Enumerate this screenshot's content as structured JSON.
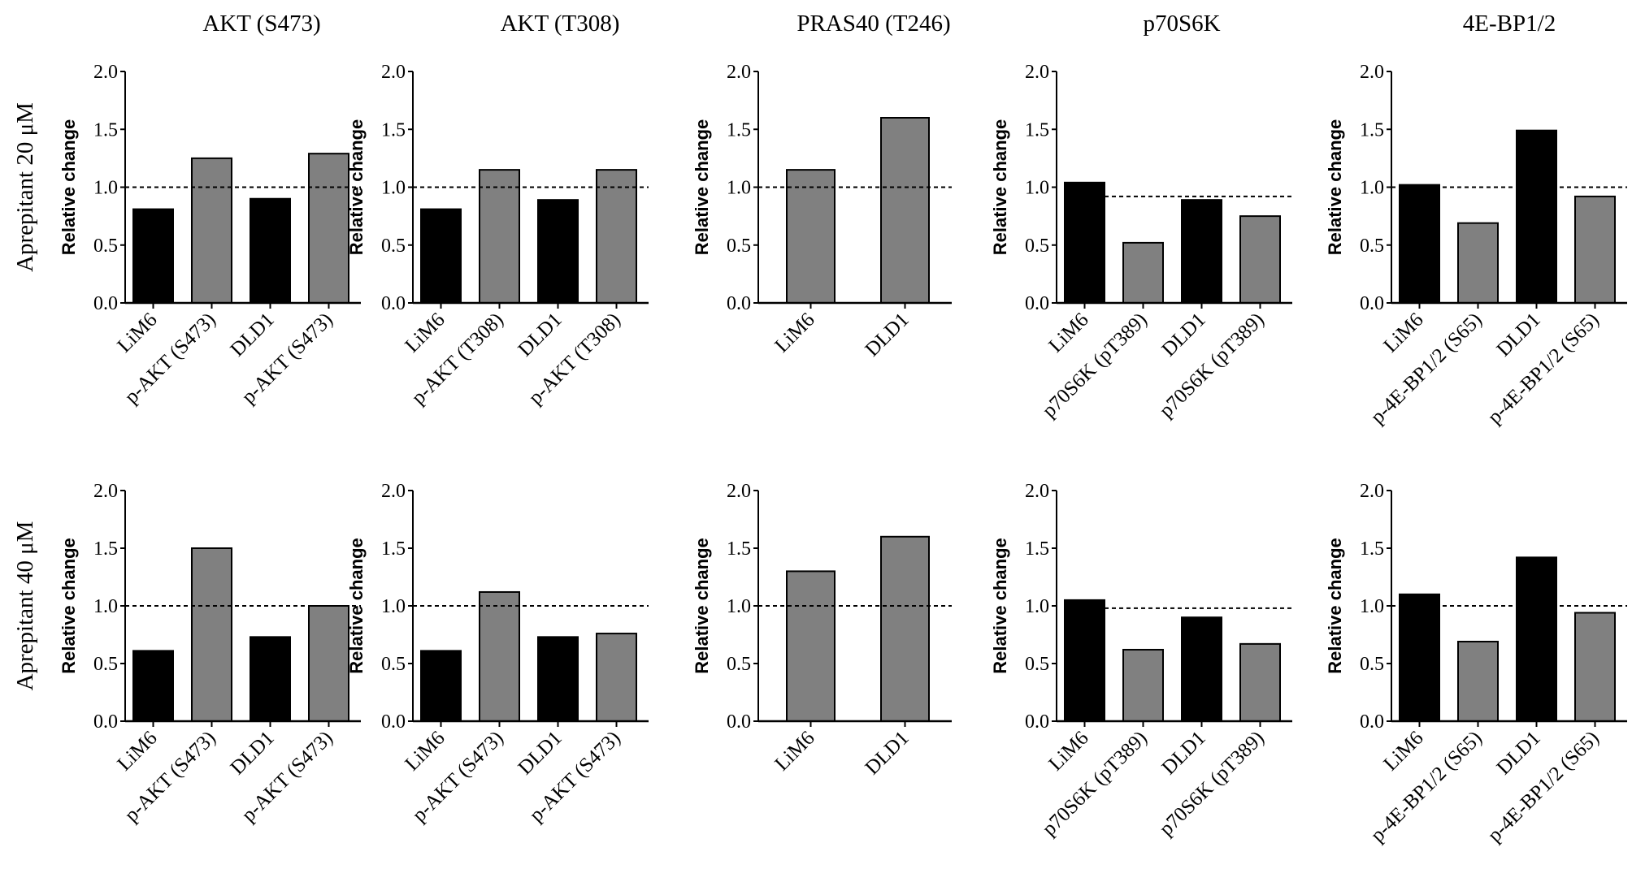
{
  "chart_data": {
    "type": "bar",
    "column_titles": [
      "AKT (S473)",
      "AKT (T308)",
      "PRAS40 (T246)",
      "p70S6K",
      "4E-BP1/2"
    ],
    "row_labels": [
      "Aprepitant 20 μM",
      "Aprepitant 40 μM"
    ],
    "ylabel": "Relative change",
    "ylim": [
      0,
      2.0
    ],
    "yticks": [
      "0.0",
      "0.5",
      "1.0",
      "1.5",
      "2.0"
    ],
    "colors": {
      "black": "#000000",
      "gray": "#808080"
    },
    "panels": [
      [
        {
          "categories": [
            "LiM6",
            "p-AKT (S473)",
            "DLD1",
            "p-AKT (S473)"
          ],
          "values": [
            0.81,
            1.25,
            0.9,
            1.29
          ],
          "colors": [
            "black",
            "gray",
            "black",
            "gray"
          ],
          "ref_line": 1.0,
          "ref_start": 0
        },
        {
          "categories": [
            "LiM6",
            "p-AKT (T308)",
            "DLD1",
            "p-AKT (T308)"
          ],
          "values": [
            0.81,
            1.15,
            0.89,
            1.15
          ],
          "colors": [
            "black",
            "gray",
            "black",
            "gray"
          ],
          "ref_line": 1.0,
          "ref_start": 0
        },
        {
          "categories": [
            "LiM6",
            "DLD1"
          ],
          "values": [
            1.15,
            1.6
          ],
          "colors": [
            "gray",
            "gray"
          ],
          "ref_line": 1.0,
          "ref_start": 0
        },
        {
          "categories": [
            "LiM6",
            "p70S6K (pT389)",
            "DLD1",
            "p70S6K (pT389)"
          ],
          "values": [
            1.04,
            0.52,
            0.89,
            0.75
          ],
          "colors": [
            "black",
            "gray",
            "black",
            "gray"
          ],
          "ref_line": 0.92,
          "ref_start": 1
        },
        {
          "categories": [
            "LiM6",
            "p-4E-BP1/2 (S65)",
            "DLD1",
            "p-4E-BP1/2 (S65)"
          ],
          "values": [
            1.02,
            0.69,
            1.49,
            0.92
          ],
          "colors": [
            "black",
            "gray",
            "black",
            "gray"
          ],
          "ref_line": 1.0,
          "ref_start": 0
        }
      ],
      [
        {
          "categories": [
            "LiM6",
            "p-AKT (S473)",
            "DLD1",
            "p-AKT (S473)"
          ],
          "values": [
            0.61,
            1.5,
            0.73,
            1.0
          ],
          "colors": [
            "black",
            "gray",
            "black",
            "gray"
          ],
          "ref_line": 1.0,
          "ref_start": 0
        },
        {
          "categories": [
            "LiM6",
            "p-AKT (S473)",
            "DLD1",
            "p-AKT (S473)"
          ],
          "values": [
            0.61,
            1.12,
            0.73,
            0.76
          ],
          "colors": [
            "black",
            "gray",
            "black",
            "gray"
          ],
          "ref_line": 1.0,
          "ref_start": 0
        },
        {
          "categories": [
            "LiM6",
            "DLD1"
          ],
          "values": [
            1.3,
            1.6
          ],
          "colors": [
            "gray",
            "gray"
          ],
          "ref_line": 1.0,
          "ref_start": 0
        },
        {
          "categories": [
            "LiM6",
            "p70S6K (pT389)",
            "DLD1",
            "p70S6K (pT389)"
          ],
          "values": [
            1.05,
            0.62,
            0.9,
            0.67
          ],
          "colors": [
            "black",
            "gray",
            "black",
            "gray"
          ],
          "ref_line": 0.98,
          "ref_start": 1
        },
        {
          "categories": [
            "LiM6",
            "p-4E-BP1/2 (S65)",
            "DLD1",
            "p-4E-BP1/2 (S65)"
          ],
          "values": [
            1.1,
            0.69,
            1.42,
            0.94
          ],
          "colors": [
            "black",
            "gray",
            "black",
            "gray"
          ],
          "ref_line": 1.0,
          "ref_start": 0
        }
      ]
    ]
  }
}
